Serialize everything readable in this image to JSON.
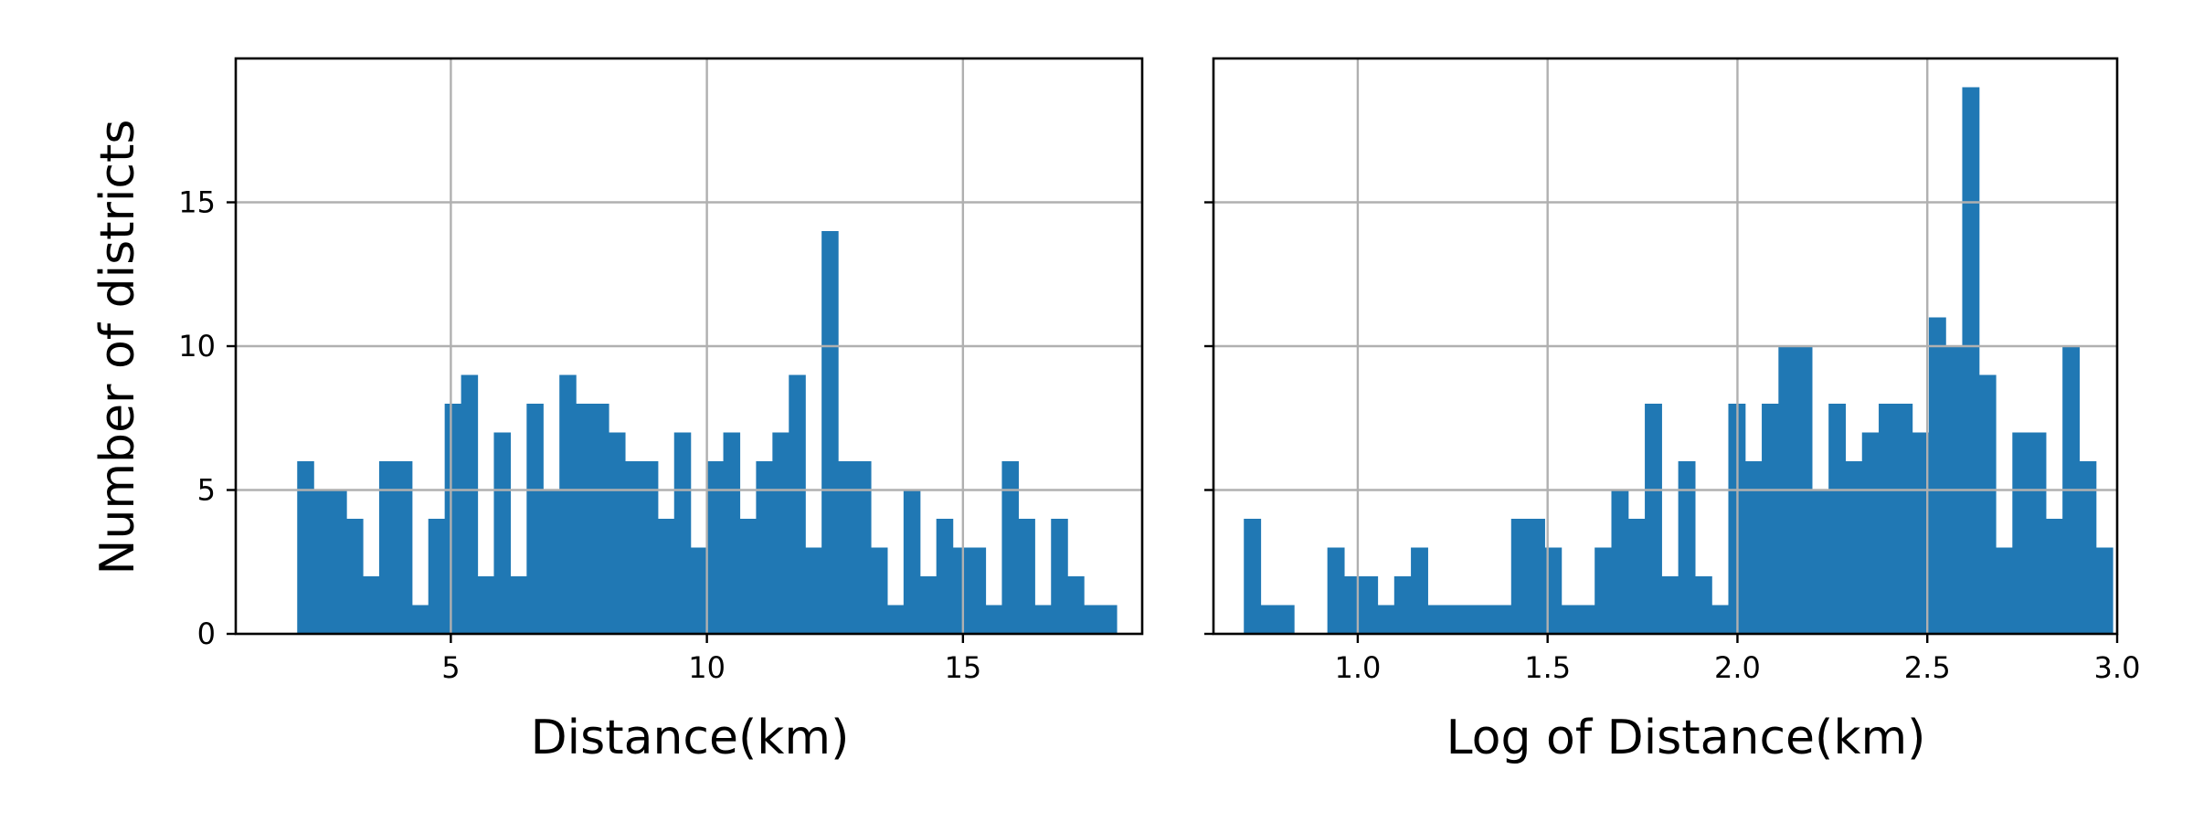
{
  "colors": {
    "bar": "#2078b4",
    "grid": "#b0b0b0",
    "frame": "#000000"
  },
  "chart_data": [
    {
      "type": "bar",
      "xlabel": "Distance(km)",
      "ylabel": "Number of districts",
      "xlim": [
        0.8,
        18.5
      ],
      "ylim": [
        0,
        20
      ],
      "grid": true,
      "xticks": [
        5,
        10,
        15
      ],
      "yticks": [
        0,
        5,
        10,
        15
      ],
      "bin_start": 2.0,
      "bin_width": 0.32,
      "values": [
        6,
        5,
        5,
        4,
        2,
        6,
        6,
        1,
        4,
        8,
        9,
        2,
        7,
        2,
        8,
        5,
        9,
        8,
        8,
        7,
        6,
        6,
        4,
        7,
        3,
        6,
        7,
        4,
        6,
        7,
        9,
        3,
        14,
        6,
        6,
        3,
        1,
        5,
        2,
        4,
        3,
        3,
        1,
        6,
        4,
        1,
        4,
        2,
        1,
        1
      ]
    },
    {
      "type": "bar",
      "xlabel": "Log of Distance(km)",
      "ylabel": "",
      "xlim": [
        0.62,
        3.0
      ],
      "ylim": [
        0,
        20
      ],
      "grid": true,
      "xticks": [
        1.0,
        1.5,
        2.0,
        2.5,
        3.0
      ],
      "yticks": [
        0,
        5,
        10,
        15
      ],
      "bin_start": 0.7,
      "bin_width": 0.044,
      "values": [
        4,
        1,
        1,
        0,
        0,
        3,
        2,
        2,
        1,
        2,
        3,
        1,
        1,
        1,
        1,
        1,
        4,
        4,
        3,
        1,
        1,
        3,
        5,
        4,
        8,
        2,
        6,
        2,
        1,
        8,
        6,
        8,
        10,
        10,
        5,
        8,
        6,
        7,
        8,
        8,
        7,
        11,
        10,
        19,
        9,
        3,
        7,
        7,
        4,
        10,
        6,
        3
      ]
    }
  ]
}
